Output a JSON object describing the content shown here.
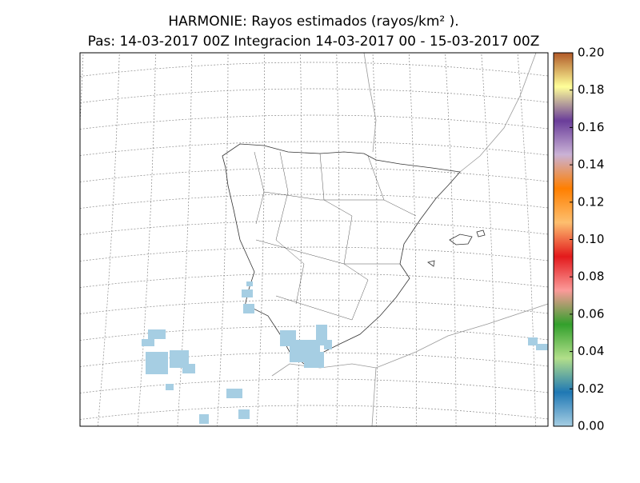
{
  "map": {
    "title": "HARMONIE: Rayos estimados  (rayos/km² ).",
    "subtitle": "Pas: 14-03-2017 00Z Integracion 14-03-2017 00 - 15-03-2017 00Z",
    "colorbar": {
      "lim": [
        0,
        0.2
      ],
      "ticks": [
        {
          "value": 0,
          "label": "0.00"
        },
        {
          "value": 0.02,
          "label": "0.02"
        },
        {
          "value": 0.04,
          "label": "0.04"
        },
        {
          "value": 0.06,
          "label": "0.06"
        },
        {
          "value": 0.08,
          "label": "0.08"
        },
        {
          "value": 0.1,
          "label": "0.10"
        },
        {
          "value": 0.12,
          "label": "0.12"
        },
        {
          "value": 0.14,
          "label": "0.14"
        },
        {
          "value": 0.16,
          "label": "0.16"
        },
        {
          "value": 0.18,
          "label": "0.18"
        },
        {
          "value": 0.2,
          "label": "0.20"
        }
      ],
      "colors": [
        "#a6cee3",
        "#1f78b4",
        "#b2df8a",
        "#33a02c",
        "#fb9a99",
        "#e31a1c",
        "#fdbf6f",
        "#ff7f00",
        "#cab2d6",
        "#6a3d9a",
        "#ffff99",
        "#b15928"
      ]
    }
  }
}
